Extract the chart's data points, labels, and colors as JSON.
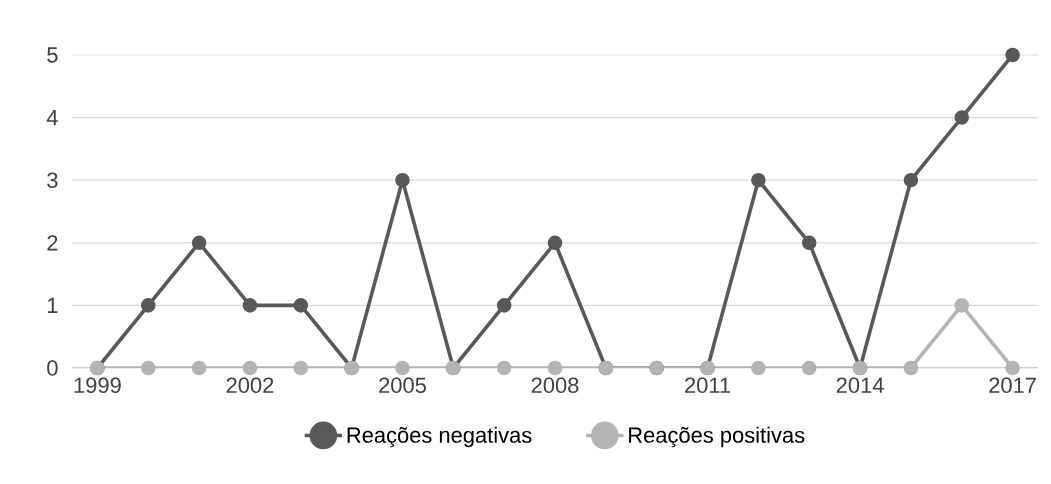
{
  "chart_data": {
    "type": "line",
    "x": [
      1999,
      2000,
      2001,
      2002,
      2003,
      2004,
      2005,
      2006,
      2007,
      2008,
      2009,
      2010,
      2011,
      2012,
      2013,
      2014,
      2015,
      2016,
      2017
    ],
    "series": [
      {
        "name": "Reações negativas",
        "color": "#595959",
        "values": [
          0,
          1,
          2,
          1,
          1,
          0,
          3,
          0,
          1,
          2,
          0,
          0,
          0,
          3,
          2,
          0,
          3,
          4,
          5
        ]
      },
      {
        "name": "Reações positivas",
        "color": "#b4b4b4",
        "values": [
          0,
          0,
          0,
          0,
          0,
          0,
          0,
          0,
          0,
          0,
          0,
          0,
          0,
          0,
          0,
          0,
          0,
          1,
          0
        ]
      }
    ],
    "xlim": [
      1998.5,
      2017.5
    ],
    "xticks": [
      1999,
      2002,
      2005,
      2008,
      2011,
      2014,
      2017
    ],
    "ylim": [
      0,
      5
    ],
    "yticks": [
      0,
      1,
      2,
      3,
      4,
      5
    ],
    "grid": "y",
    "legend": "bottom",
    "marker": "circle",
    "line_style": "solid"
  }
}
